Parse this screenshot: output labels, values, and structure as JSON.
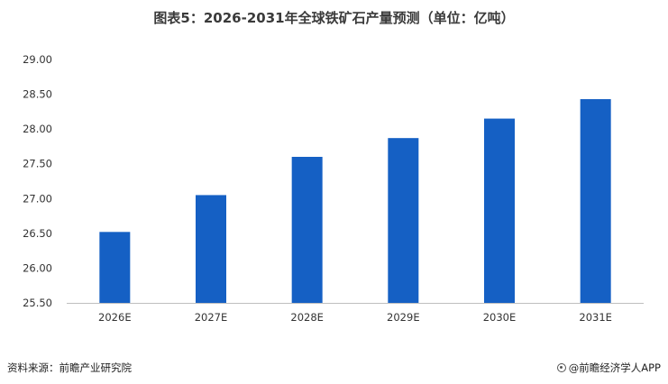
{
  "chart_data": {
    "type": "bar",
    "title": "图表5：2026-2031年全球铁矿石产量预测（单位：亿吨）",
    "categories": [
      "2026E",
      "2027E",
      "2028E",
      "2029E",
      "2030E",
      "2031E"
    ],
    "values": [
      26.52,
      27.05,
      27.6,
      27.87,
      28.15,
      28.43
    ],
    "ylim": [
      25.5,
      29.0
    ],
    "yticks": [
      "25.50",
      "26.00",
      "26.50",
      "27.00",
      "27.50",
      "28.00",
      "28.50",
      "29.00"
    ],
    "grid": false,
    "legend": "none",
    "bar_color": "#1560c4"
  },
  "footer": {
    "source": "资料来源：前瞻产业研究院",
    "brand": "@前瞻经济学人APP"
  }
}
